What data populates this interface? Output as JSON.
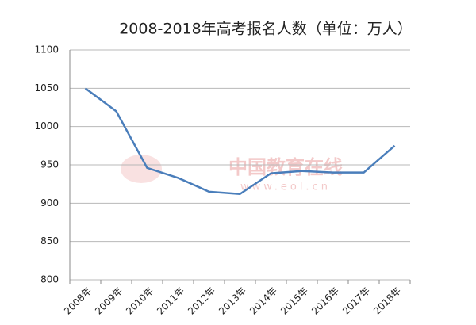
{
  "chart_data": {
    "type": "line",
    "title": "2008-2018年高考报名人数（单位：万人）",
    "categories": [
      "2008年",
      "2009年",
      "2010年",
      "2011年",
      "2012年",
      "2013年",
      "2014年",
      "2015年",
      "2016年",
      "2017年",
      "2018年"
    ],
    "series": [
      {
        "name": "高考报名人数",
        "color": "#4a7ebb",
        "values": [
          1050,
          1020,
          946,
          933,
          915,
          912,
          939,
          942,
          940,
          940,
          975
        ]
      }
    ],
    "ylim": [
      800,
      1100
    ],
    "yticks": [
      800,
      850,
      900,
      950,
      1000,
      1050,
      1100
    ],
    "grid": true,
    "watermark": [
      "中国教育在线",
      "www.eol.cn"
    ]
  }
}
